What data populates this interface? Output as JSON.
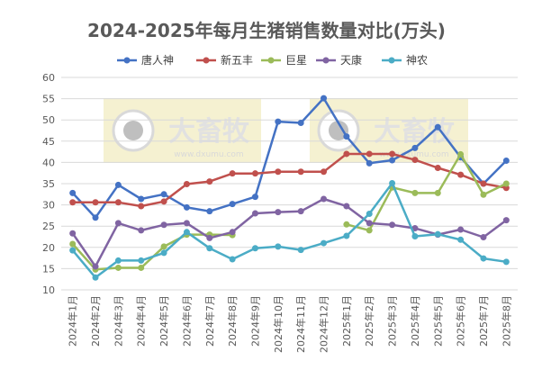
{
  "chart_data": {
    "type": "line",
    "title": "2024-2025年每月生猪销售数量对比(万头)",
    "watermark": {
      "text": "大畜牧",
      "url": "www.dxumu.com"
    },
    "ylim": [
      10,
      60
    ],
    "yticks": [
      "10",
      "15",
      "20",
      "25",
      "30",
      "35",
      "40",
      "45",
      "50",
      "55",
      "60"
    ],
    "categories": [
      "2024年1月",
      "2024年2月",
      "2024年3月",
      "2024年4月",
      "2024年5月",
      "2024年6月",
      "2024年7月",
      "2024年8月",
      "2024年9月",
      "2024年10月",
      "2024年11月",
      "2024年12月",
      "2025年1月",
      "2025年2月",
      "2025年3月",
      "2025年4月",
      "2025年5月",
      "2025年6月",
      "2025年7月",
      "2025年8月"
    ],
    "grid": true,
    "legend_position": "top",
    "series": [
      {
        "name": "唐人神",
        "color": "#4472c4",
        "values": [
          32.8,
          27.0,
          34.7,
          31.4,
          32.5,
          29.4,
          28.5,
          30.2,
          31.9,
          49.6,
          49.3,
          55.1,
          46.1,
          39.8,
          40.5,
          43.4,
          48.3,
          41.2,
          35.0,
          40.4
        ]
      },
      {
        "name": "新五丰",
        "color": "#c0504d",
        "values": [
          30.6,
          30.6,
          30.6,
          29.7,
          30.8,
          34.9,
          35.5,
          37.4,
          37.4,
          37.8,
          37.8,
          37.8,
          42.0,
          42.0,
          42.0,
          40.6,
          38.7,
          37.1,
          35.0,
          34.0
        ]
      },
      {
        "name": "巨星",
        "color": "#9bbb59",
        "values": [
          20.8,
          14.8,
          15.2,
          15.2,
          20.2,
          23.0,
          23.0,
          22.9,
          null,
          null,
          null,
          null,
          25.4,
          24.0,
          34.1,
          32.8,
          32.8,
          41.9,
          32.4,
          35.0
        ]
      },
      {
        "name": "天康",
        "color": "#8064a2",
        "values": [
          23.3,
          15.5,
          25.7,
          24.0,
          25.3,
          25.7,
          22.2,
          23.6,
          28.0,
          28.3,
          28.5,
          31.4,
          29.7,
          25.7,
          25.3,
          24.5,
          23.0,
          24.2,
          22.4,
          26.4
        ]
      },
      {
        "name": "神农",
        "color": "#4bacc6",
        "values": [
          19.3,
          12.9,
          16.9,
          16.9,
          18.7,
          23.6,
          19.8,
          17.2,
          19.8,
          20.2,
          19.4,
          21.0,
          22.7,
          27.9,
          35.1,
          22.6,
          23.1,
          21.8,
          17.4,
          16.6
        ]
      }
    ]
  }
}
